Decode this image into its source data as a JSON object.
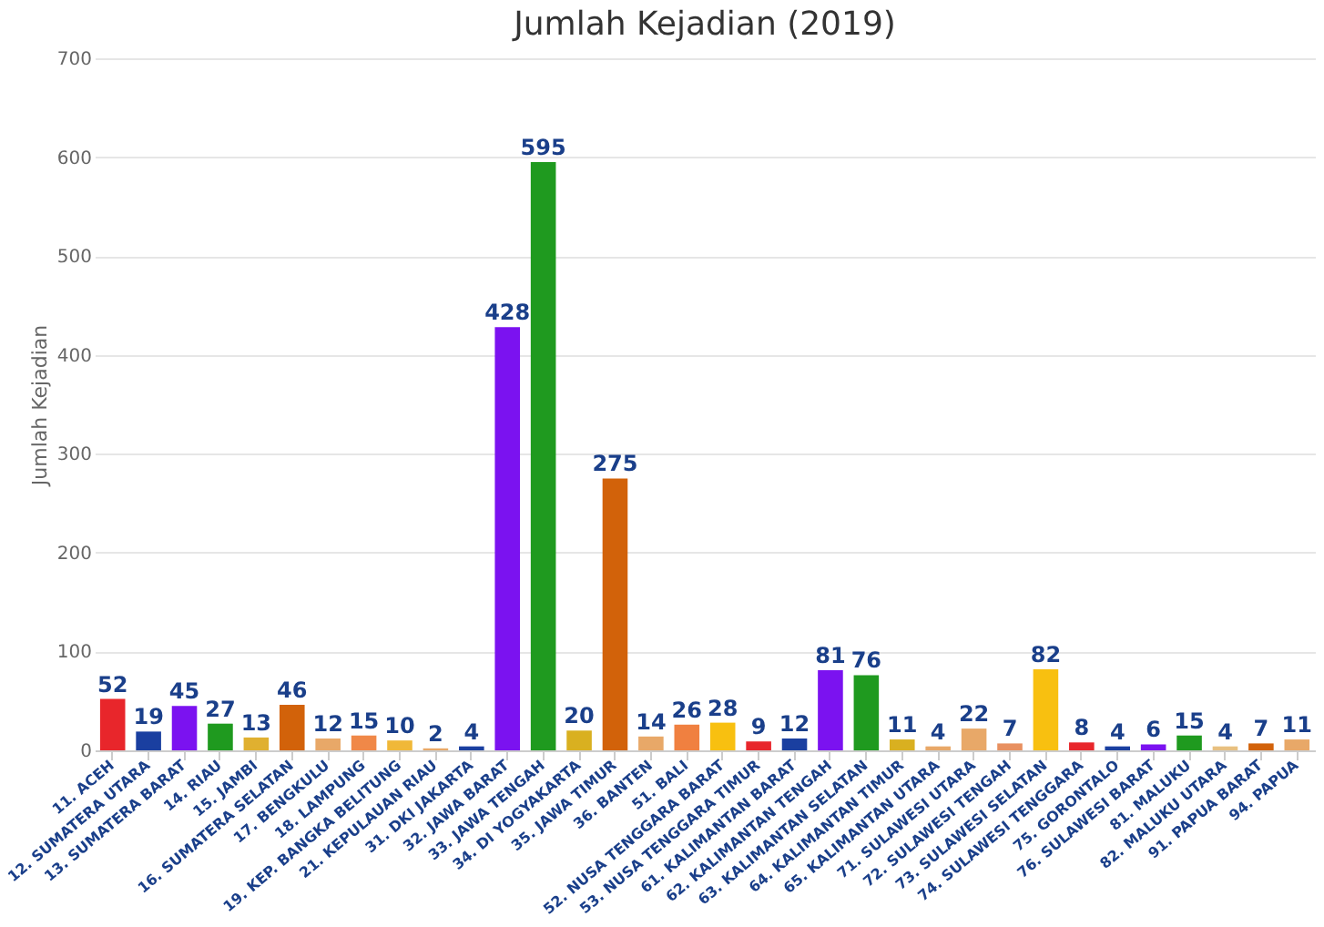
{
  "chart_data": {
    "type": "bar",
    "title": "Jumlah Kejadian (2019)",
    "ylabel": "Jumlah Kejadian",
    "categories": [
      "11. ACEH",
      "12. SUMATERA UTARA",
      "13. SUMATERA BARAT",
      "14. RIAU",
      "15. JAMBI",
      "16. SUMATERA SELATAN",
      "17. BENGKULU",
      "18. LAMPUNG",
      "19. KEP. BANGKA BELITUNG",
      "21. KEPULAUAN RIAU",
      "31. DKI JAKARTA",
      "32. JAWA BARAT",
      "33. JAWA TENGAH",
      "34. DI YOGYAKARTA",
      "35. JAWA TIMUR",
      "36. BANTEN",
      "51. BALI",
      "52. NUSA TENGGARA BARAT",
      "53. NUSA TENGGARA TIMUR",
      "61. KALIMANTAN BARAT",
      "62. KALIMANTAN TENGAH",
      "63. KALIMANTAN SELATAN",
      "64. KALIMANTAN TIMUR",
      "65. KALIMANTAN UTARA",
      "71. SULAWESI UTARA",
      "72. SULAWESI TENGAH",
      "73. SULAWESI SELATAN",
      "74. SULAWESI TENGGARA",
      "75. GORONTALO",
      "76. SULAWESI BARAT",
      "81. MALUKU",
      "82. MALUKU UTARA",
      "91. PAPUA BARAT",
      "94. PAPUA"
    ],
    "values": [
      52,
      19,
      45,
      27,
      13,
      46,
      12,
      15,
      10,
      2,
      4,
      428,
      595,
      20,
      275,
      14,
      26,
      28,
      9,
      12,
      81,
      76,
      11,
      4,
      22,
      7,
      82,
      8,
      4,
      6,
      15,
      4,
      7,
      11
    ],
    "colors": [
      "#e8262b",
      "#1a3fa0",
      "#7b12f0",
      "#1f9a1f",
      "#e0b030",
      "#d2620a",
      "#e8a868",
      "#f08848",
      "#f0b838",
      "#e8a868",
      "#1a3fa0",
      "#7b12f0",
      "#1f9a1f",
      "#d9b020",
      "#d2620a",
      "#e8a868",
      "#f08040",
      "#f8c010",
      "#e8262b",
      "#1a3fa0",
      "#7b12f0",
      "#1f9a1f",
      "#d9b020",
      "#e8a868",
      "#e8a868",
      "#e89060",
      "#f8c010",
      "#e8262b",
      "#1a3fa0",
      "#7b12f0",
      "#1f9a1f",
      "#e8c080",
      "#d2620a",
      "#e8a868"
    ],
    "ylim": [
      0,
      700
    ],
    "yticks": [
      0,
      100,
      200,
      300,
      400,
      500,
      600,
      700
    ],
    "grid": "y",
    "data_labels": true
  }
}
